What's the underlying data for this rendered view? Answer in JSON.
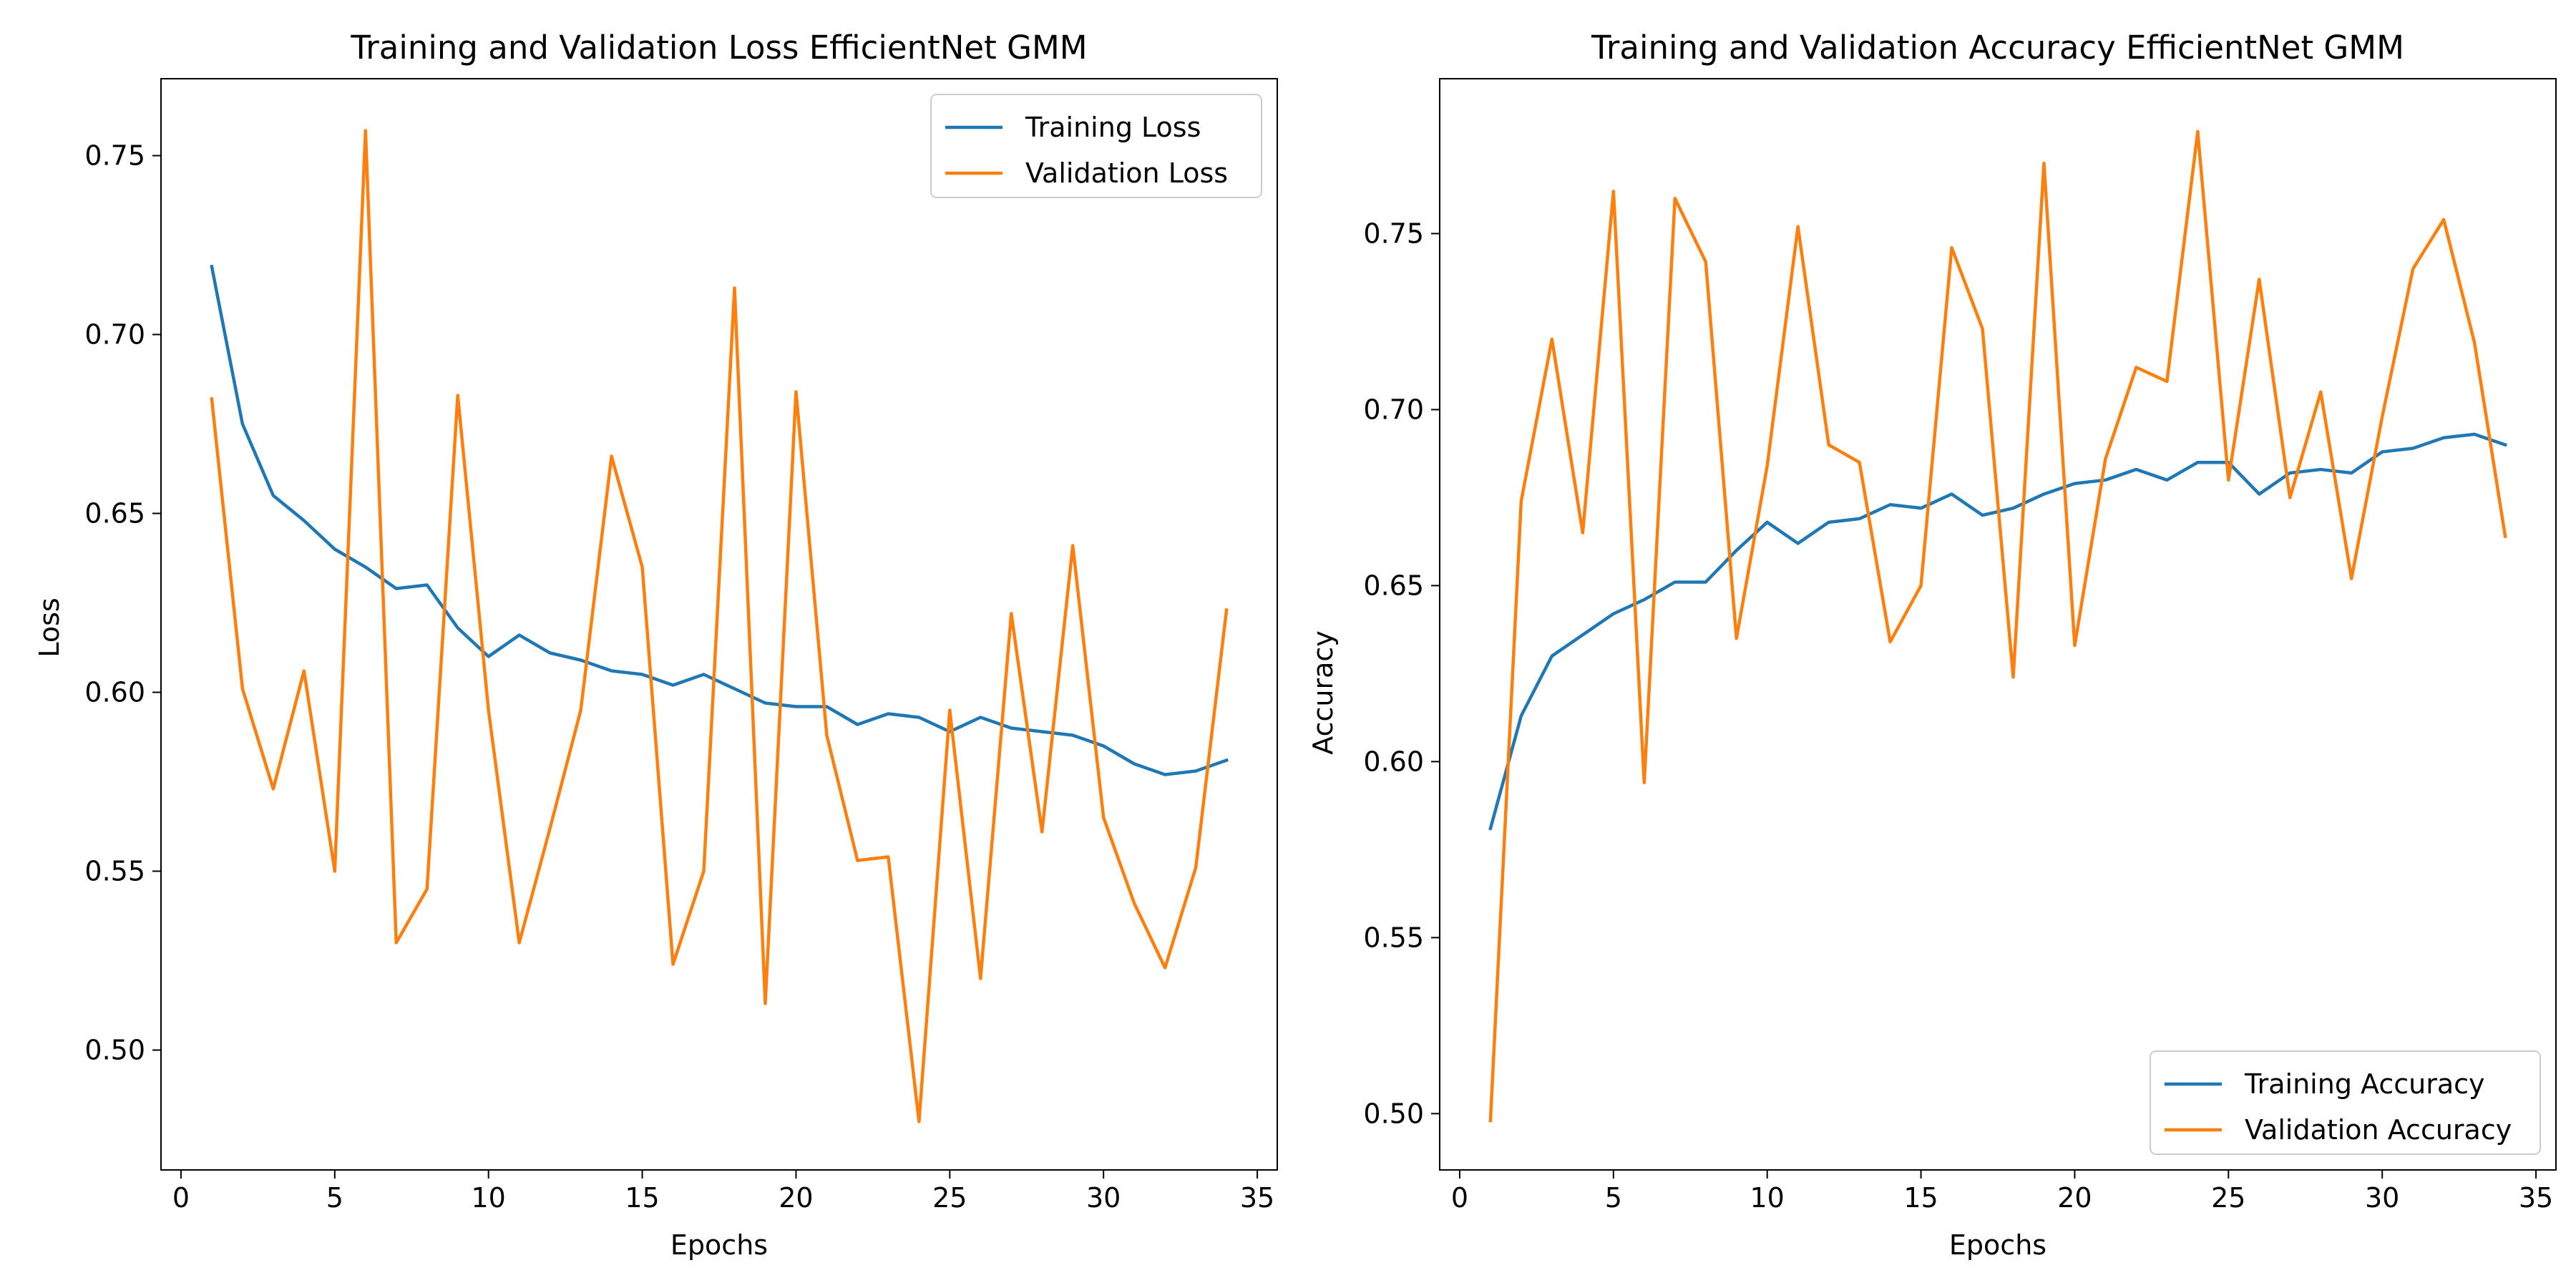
{
  "chart_data": [
    {
      "type": "line",
      "title": "Training and Validation Loss EfficientNet GMM",
      "xlabel": "Epochs",
      "ylabel": "Loss",
      "xlim": [
        -0.65,
        35.65
      ],
      "ylim": [
        0.4665,
        0.7715
      ],
      "xticks": [
        0,
        5,
        10,
        15,
        20,
        25,
        30,
        35
      ],
      "xtick_labels": [
        "0",
        "5",
        "10",
        "15",
        "20",
        "25",
        "30",
        "35"
      ],
      "yticks": [
        0.5,
        0.55,
        0.6,
        0.65,
        0.7,
        0.75
      ],
      "ytick_labels": [
        "0.50",
        "0.55",
        "0.60",
        "0.65",
        "0.70",
        "0.75"
      ],
      "grid": false,
      "legend_position": "upper-right",
      "x": [
        1,
        2,
        3,
        4,
        5,
        6,
        7,
        8,
        9,
        10,
        11,
        12,
        13,
        14,
        15,
        16,
        17,
        18,
        19,
        20,
        21,
        22,
        23,
        24,
        25,
        26,
        27,
        28,
        29,
        30,
        31,
        32,
        33,
        34
      ],
      "series": [
        {
          "name": "Training Loss",
          "color": "#1f77b4",
          "values": [
            0.719,
            0.675,
            0.655,
            0.648,
            0.64,
            0.635,
            0.629,
            0.63,
            0.618,
            0.61,
            0.616,
            0.611,
            0.609,
            0.606,
            0.605,
            0.602,
            0.605,
            0.601,
            0.597,
            0.596,
            0.596,
            0.591,
            0.594,
            0.593,
            0.589,
            0.593,
            0.59,
            0.589,
            0.588,
            0.585,
            0.58,
            0.577,
            0.578,
            0.581
          ]
        },
        {
          "name": "Validation Loss",
          "color": "#ff7f0e",
          "values": [
            0.682,
            0.601,
            0.573,
            0.606,
            0.55,
            0.757,
            0.53,
            0.545,
            0.683,
            0.595,
            0.53,
            0.562,
            0.595,
            0.666,
            0.635,
            0.524,
            0.55,
            0.713,
            0.513,
            0.684,
            0.588,
            0.553,
            0.554,
            0.48,
            0.595,
            0.52,
            0.622,
            0.561,
            0.641,
            0.565,
            0.541,
            0.523,
            0.551,
            0.623
          ]
        }
      ]
    },
    {
      "type": "line",
      "title": "Training and Validation Accuracy EfficientNet GMM",
      "xlabel": "Epochs",
      "ylabel": "Accuracy",
      "xlim": [
        -0.65,
        35.65
      ],
      "ylim": [
        0.484,
        0.794
      ],
      "xticks": [
        0,
        5,
        10,
        15,
        20,
        25,
        30,
        35
      ],
      "xtick_labels": [
        "0",
        "5",
        "10",
        "15",
        "20",
        "25",
        "30",
        "35"
      ],
      "yticks": [
        0.5,
        0.55,
        0.6,
        0.65,
        0.7,
        0.75
      ],
      "ytick_labels": [
        "0.50",
        "0.55",
        "0.60",
        "0.65",
        "0.70",
        "0.75"
      ],
      "grid": false,
      "legend_position": "lower-right",
      "x": [
        1,
        2,
        3,
        4,
        5,
        6,
        7,
        8,
        9,
        10,
        11,
        12,
        13,
        14,
        15,
        16,
        17,
        18,
        19,
        20,
        21,
        22,
        23,
        24,
        25,
        26,
        27,
        28,
        29,
        30,
        31,
        32,
        33,
        34
      ],
      "series": [
        {
          "name": "Training Accuracy",
          "color": "#1f77b4",
          "values": [
            0.581,
            0.613,
            0.63,
            0.636,
            0.642,
            0.646,
            0.651,
            0.651,
            0.66,
            0.668,
            0.662,
            0.668,
            0.669,
            0.673,
            0.672,
            0.676,
            0.67,
            0.672,
            0.676,
            0.679,
            0.68,
            0.683,
            0.68,
            0.685,
            0.685,
            0.676,
            0.682,
            0.683,
            0.682,
            0.688,
            0.689,
            0.692,
            0.693,
            0.69
          ]
        },
        {
          "name": "Validation Accuracy",
          "color": "#ff7f0e",
          "values": [
            0.498,
            0.674,
            0.72,
            0.665,
            0.762,
            0.594,
            0.76,
            0.742,
            0.635,
            0.684,
            0.752,
            0.69,
            0.685,
            0.634,
            0.65,
            0.746,
            0.723,
            0.624,
            0.77,
            0.633,
            0.686,
            0.712,
            0.708,
            0.779,
            0.68,
            0.737,
            0.675,
            0.705,
            0.652,
            0.698,
            0.74,
            0.754,
            0.719,
            0.664
          ]
        }
      ]
    }
  ]
}
